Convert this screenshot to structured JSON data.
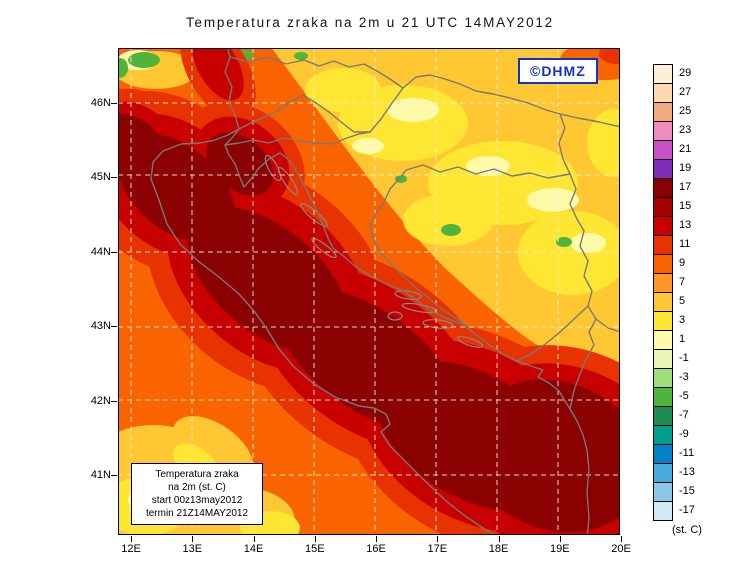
{
  "title": "Temperatura zraka na 2m u 21 UTC 14MAY2012",
  "watermark": "©DHMZ",
  "info_box": {
    "line1": "Temperatura zraka",
    "line2": "na 2m (st. C)",
    "line3": "start 00z13may2012",
    "line4": "termin 21Z14MAY2012"
  },
  "axes": {
    "lat_labels": [
      "46N",
      "45N",
      "44N",
      "43N",
      "42N",
      "41N"
    ],
    "lon_labels": [
      "12E",
      "13E",
      "14E",
      "15E",
      "16E",
      "17E",
      "18E",
      "19E",
      "20E"
    ]
  },
  "legend": {
    "unit": "(st. C)",
    "values": [
      "29",
      "27",
      "25",
      "23",
      "21",
      "19",
      "17",
      "15",
      "13",
      "11",
      "9",
      "7",
      "5",
      "3",
      "1",
      "-1",
      "-3",
      "-5",
      "-7",
      "-9",
      "-11",
      "-13",
      "-15",
      "-17"
    ],
    "colors": [
      "#ffeed8",
      "#ffd9b0",
      "#f2ab7e",
      "#ee8cbb",
      "#cc4ec9",
      "#7d2fbb",
      "#8b0000",
      "#a60000",
      "#c80000",
      "#e83200",
      "#fa6400",
      "#ff9628",
      "#ffc832",
      "#ffe632",
      "#fffaaa",
      "#e8f5b4",
      "#a0dc78",
      "#50b43c",
      "#1e8c50",
      "#00a08c",
      "#0082c8",
      "#46aadc",
      "#8cc8e8",
      "#cfe9f7"
    ]
  }
}
